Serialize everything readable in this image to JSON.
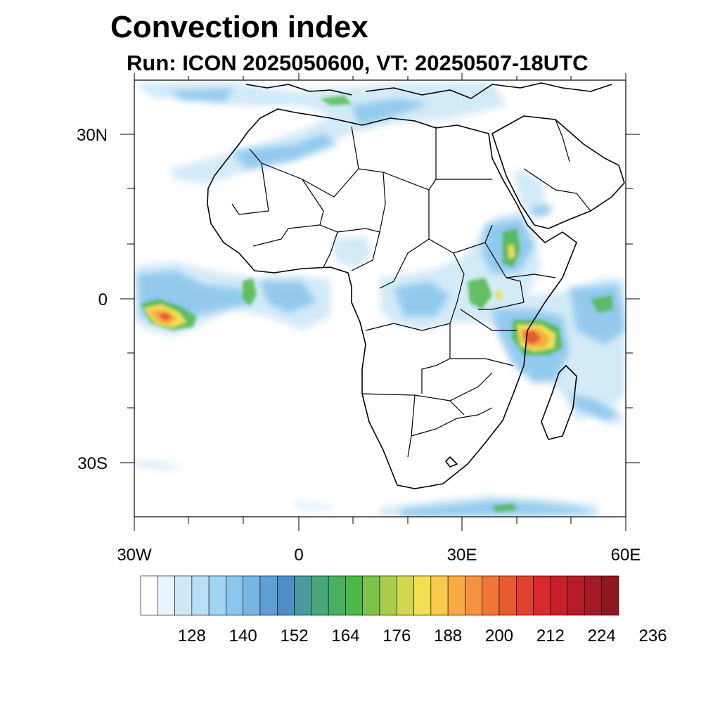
{
  "title": "Convection index",
  "subtitle": "Run: ICON 2025050600,  VT: 20250507-18UTC",
  "map": {
    "region": "Africa",
    "projection": "cylindrical equidistant",
    "lon_range": [
      -30,
      60
    ],
    "lat_range": [
      -40,
      40
    ],
    "x_ticks": [
      {
        "value": -30,
        "label": "30W"
      },
      {
        "value": 0,
        "label": "0"
      },
      {
        "value": 30,
        "label": "30E"
      },
      {
        "value": 60,
        "label": "60E"
      }
    ],
    "y_ticks": [
      {
        "value": 30,
        "label": "30N"
      },
      {
        "value": 0,
        "label": "0"
      },
      {
        "value": -30,
        "label": "30S"
      }
    ],
    "features": [
      "country-borders",
      "coastlines",
      "convection-index-shading"
    ]
  },
  "colorbar": {
    "labels": [
      "128",
      "140",
      "152",
      "164",
      "176",
      "188",
      "200",
      "212",
      "224",
      "236"
    ],
    "colors": [
      "#ffffff",
      "#e8f4fb",
      "#cfe8f7",
      "#b8def5",
      "#9fd4f2",
      "#8cc6ec",
      "#77b5e3",
      "#5f9fd6",
      "#4f8fc8",
      "#4a9aa0",
      "#4aa67e",
      "#49b060",
      "#4cb84a",
      "#7dc24a",
      "#a8cc4c",
      "#d2d84e",
      "#f0df50",
      "#f8c94a",
      "#f6ac44",
      "#f39340",
      "#ee7638",
      "#e85a32",
      "#e2402e",
      "#d8292d",
      "#c81f2b",
      "#b71b29",
      "#a41a26",
      "#8d1820"
    ]
  }
}
